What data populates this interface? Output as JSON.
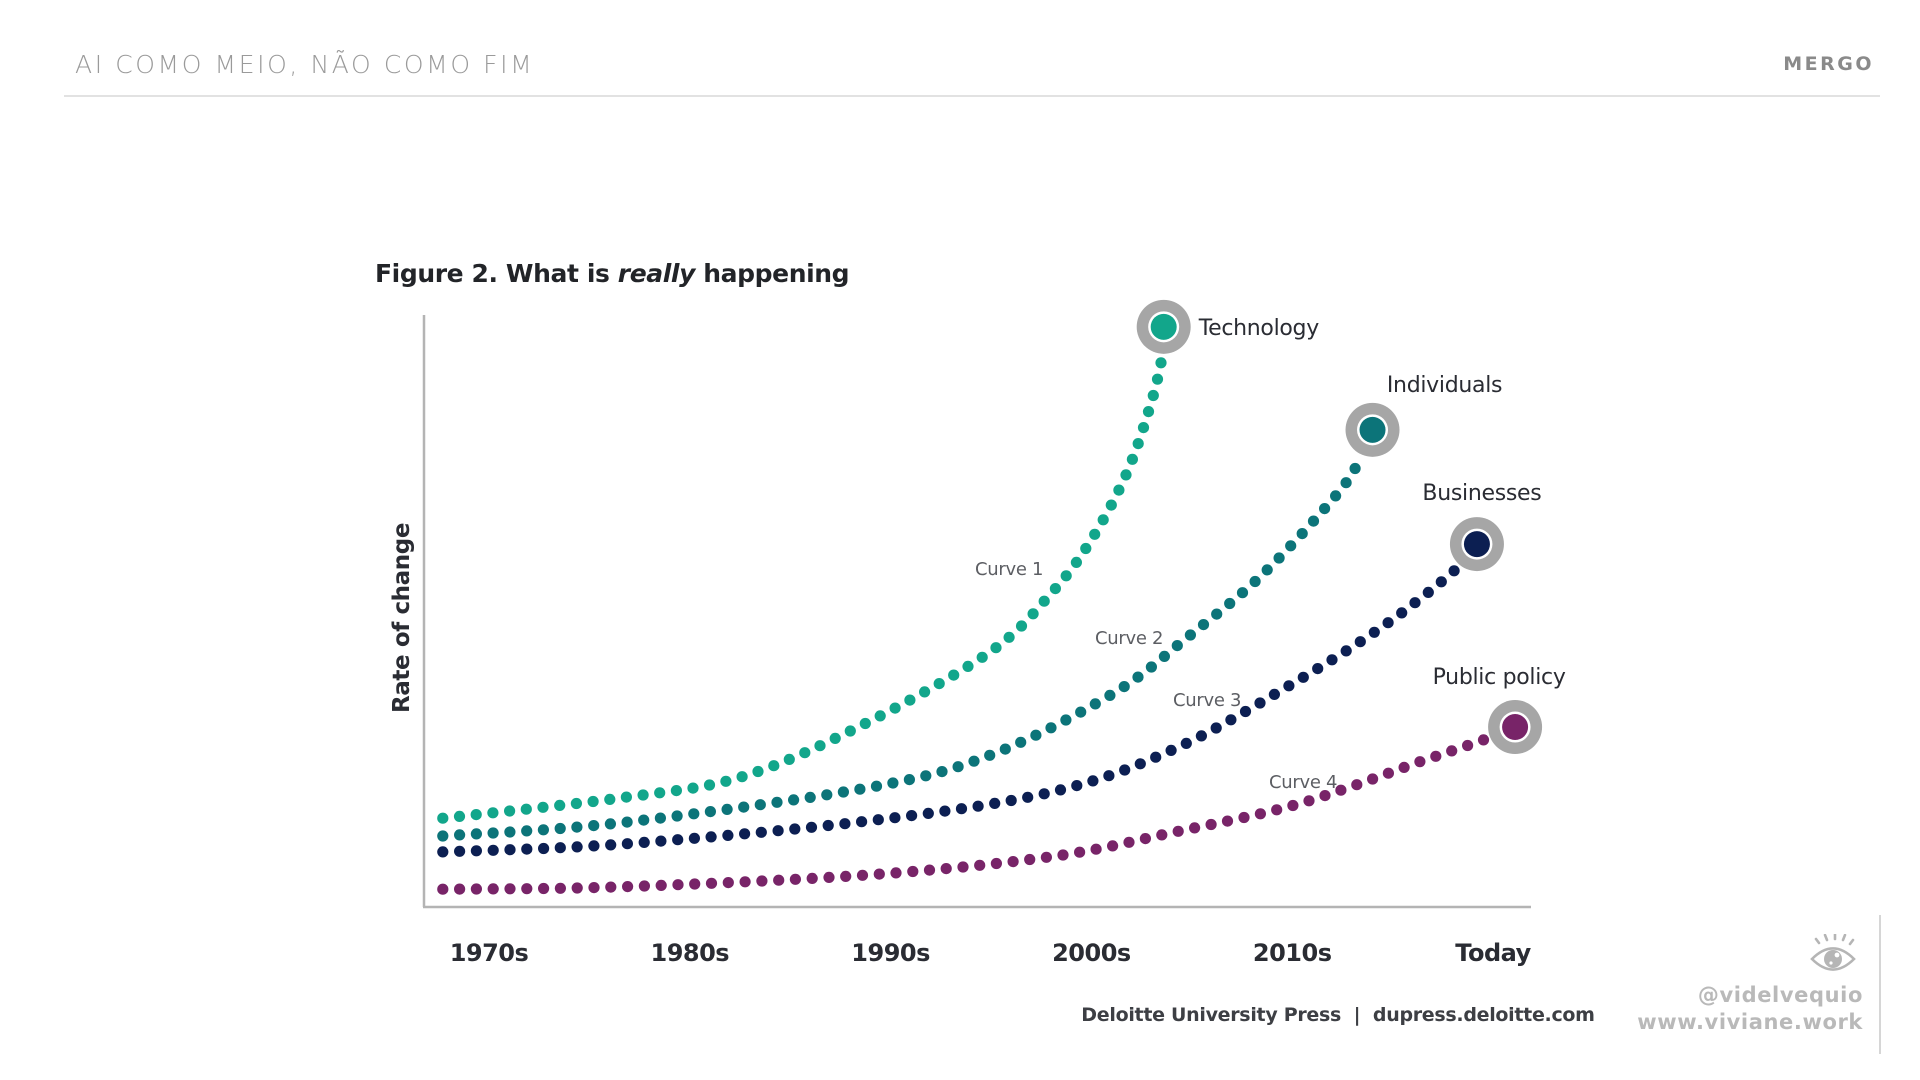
{
  "header": {
    "title": "AI COMO MEIO, NÃO COMO FIM",
    "brand": "MERGO"
  },
  "figure": {
    "title_prefix": "Figure 2. What is ",
    "title_emphasis": "really",
    "title_suffix": " happening",
    "source": "Deloitte University Press  |  dupress.deloitte.com"
  },
  "watermark": {
    "icon": "eye-icon",
    "handle": "@videlvequio",
    "site": "www.viviane.work"
  },
  "chart_data": {
    "type": "line",
    "style": "dotted-exponential-curves",
    "title": "Figure 2. What is really happening",
    "xlabel": "",
    "ylabel": "Rate of change",
    "categories": [
      "1970s",
      "1980s",
      "1990s",
      "2000s",
      "2010s",
      "Today"
    ],
    "xlim": [
      -0.23,
      5.3
    ],
    "ylim": [
      0,
      100
    ],
    "grid": false,
    "y_ticks_shown": false,
    "legend": "none (direct labels at curve endpoints)",
    "series": [
      {
        "name": "Technology",
        "curve_label": "Curve 1",
        "color": "#12a68b",
        "points": [
          [
            -0.23,
            15.0
          ],
          [
            0.65,
            18.4
          ],
          [
            1.26,
            22.0
          ],
          [
            1.88,
            31.1
          ],
          [
            2.5,
            43.2
          ],
          [
            2.8,
            53.0
          ],
          [
            2.99,
            61.5
          ],
          [
            3.17,
            72.8
          ],
          [
            3.29,
            84.3
          ],
          [
            3.35,
            92.6
          ]
        ],
        "endpoint": [
          3.36,
          98.0
        ]
      },
      {
        "name": "Individuals",
        "curve_label": "Curve 2",
        "color": "#0c7479",
        "points": [
          [
            -0.23,
            12.0
          ],
          [
            0.65,
            14.2
          ],
          [
            1.88,
            20.1
          ],
          [
            2.5,
            25.7
          ],
          [
            3.11,
            36.1
          ],
          [
            3.48,
            45.6
          ],
          [
            3.85,
            56.1
          ],
          [
            4.22,
            69.6
          ],
          [
            4.34,
            75.8
          ]
        ],
        "endpoint": [
          4.4,
          80.6
        ]
      },
      {
        "name": "Businesses",
        "curve_label": "Curve 3",
        "color": "#0c1f52",
        "points": [
          [
            -0.23,
            9.3
          ],
          [
            0.65,
            10.6
          ],
          [
            1.88,
            14.5
          ],
          [
            2.8,
            19.4
          ],
          [
            3.42,
            26.8
          ],
          [
            4.03,
            38.3
          ],
          [
            4.46,
            47.6
          ],
          [
            4.8,
            56.6
          ]
        ],
        "endpoint": [
          4.92,
          61.3
        ]
      },
      {
        "name": "Public policy",
        "curve_label": "Curve 4",
        "color": "#782468",
        "points": [
          [
            -0.23,
            3.0
          ],
          [
            0.65,
            3.4
          ],
          [
            1.88,
            5.4
          ],
          [
            2.8,
            8.5
          ],
          [
            3.42,
            12.7
          ],
          [
            4.03,
            17.4
          ],
          [
            4.65,
            24.7
          ],
          [
            4.95,
            28.2
          ]
        ],
        "endpoint": [
          5.11,
          30.4
        ]
      }
    ],
    "colors": {
      "axis": "#b4b4b4",
      "marker_ring": "#a6a6a6",
      "text_dark": "#2a2c33",
      "text_muted": "#5c5e63"
    }
  }
}
